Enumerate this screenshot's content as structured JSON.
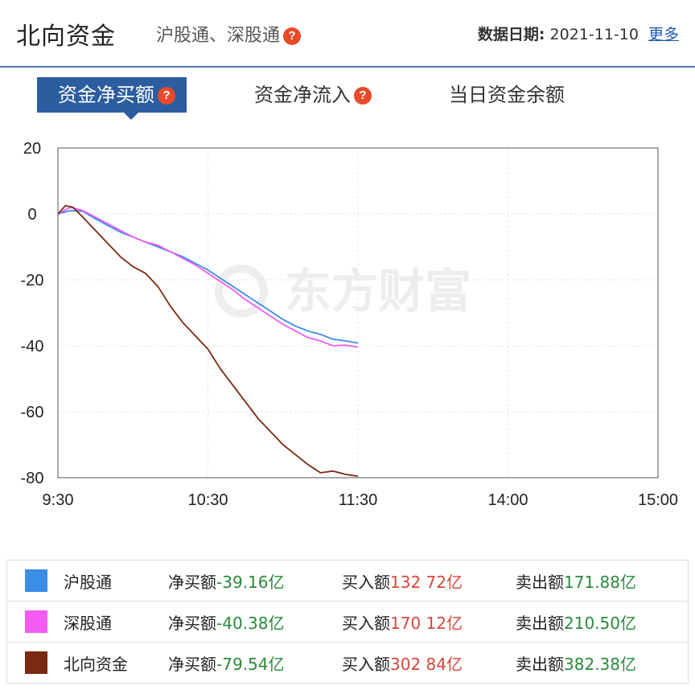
{
  "header": {
    "title": "北向资金",
    "subtitle": "沪股通、深股通",
    "date_label": "数据日期:",
    "date_value": "2021-11-10",
    "more_link": "更多",
    "help_icon": "question-icon"
  },
  "tabs": [
    {
      "label": "资金净买额",
      "active": true
    },
    {
      "label": "资金净流入",
      "active": false
    },
    {
      "label": "当日资金余额",
      "active": false
    }
  ],
  "watermark": "东方财富",
  "chart_data": {
    "type": "line",
    "x_ticks": [
      "9:30",
      "10:30",
      "11:30",
      "14:00",
      "15:00"
    ],
    "y_ticks": [
      "20",
      "0",
      "-20",
      "-40",
      "-60",
      "-80"
    ],
    "ylim": [
      -80,
      20
    ],
    "grid": true,
    "series": [
      {
        "name": "沪股通",
        "color": "#3a8ee6",
        "points": [
          [
            0,
            0
          ],
          [
            5,
            1
          ],
          [
            10,
            0.8
          ],
          [
            15,
            -1.5
          ],
          [
            20,
            -3.5
          ],
          [
            25,
            -5.5
          ],
          [
            30,
            -7
          ],
          [
            35,
            -8.5
          ],
          [
            40,
            -10
          ],
          [
            45,
            -11.5
          ],
          [
            50,
            -13
          ],
          [
            55,
            -15
          ],
          [
            60,
            -17
          ],
          [
            65,
            -19.5
          ],
          [
            70,
            -22
          ],
          [
            75,
            -24.5
          ],
          [
            80,
            -27
          ],
          [
            85,
            -29.5
          ],
          [
            90,
            -32
          ],
          [
            95,
            -34
          ],
          [
            100,
            -35.5
          ],
          [
            105,
            -36.5
          ],
          [
            110,
            -38
          ],
          [
            115,
            -38.5
          ],
          [
            120,
            -39.16
          ]
        ]
      },
      {
        "name": "深股通",
        "color": "#f25cf2",
        "points": [
          [
            0,
            0
          ],
          [
            5,
            2
          ],
          [
            10,
            1
          ],
          [
            15,
            -1
          ],
          [
            20,
            -3
          ],
          [
            25,
            -5
          ],
          [
            30,
            -7
          ],
          [
            35,
            -8.5
          ],
          [
            40,
            -9.5
          ],
          [
            45,
            -11.5
          ],
          [
            50,
            -13.5
          ],
          [
            55,
            -15.5
          ],
          [
            60,
            -18
          ],
          [
            65,
            -20.5
          ],
          [
            70,
            -23
          ],
          [
            75,
            -26
          ],
          [
            80,
            -28.5
          ],
          [
            85,
            -31
          ],
          [
            90,
            -33.5
          ],
          [
            95,
            -35.5
          ],
          [
            100,
            -37.5
          ],
          [
            105,
            -38.5
          ],
          [
            110,
            -40
          ],
          [
            115,
            -39.8
          ],
          [
            120,
            -40.38
          ]
        ]
      },
      {
        "name": "北向资金",
        "color": "#7a2a10",
        "points": [
          [
            0,
            0
          ],
          [
            3,
            2.5
          ],
          [
            6,
            2
          ],
          [
            10,
            -1
          ],
          [
            15,
            -5
          ],
          [
            20,
            -9
          ],
          [
            25,
            -13
          ],
          [
            30,
            -16
          ],
          [
            35,
            -18
          ],
          [
            40,
            -22
          ],
          [
            45,
            -28
          ],
          [
            50,
            -33
          ],
          [
            55,
            -37
          ],
          [
            60,
            -41
          ],
          [
            65,
            -47
          ],
          [
            70,
            -52
          ],
          [
            75,
            -57
          ],
          [
            80,
            -62
          ],
          [
            85,
            -66
          ],
          [
            90,
            -70
          ],
          [
            95,
            -73
          ],
          [
            100,
            -76
          ],
          [
            105,
            -78.5
          ],
          [
            110,
            -78
          ],
          [
            115,
            -79
          ],
          [
            120,
            -79.54
          ]
        ]
      }
    ]
  },
  "legend": [
    {
      "name": "沪股通",
      "color": "#3a8ee6",
      "net_label": "净买额",
      "net": "-39.16亿",
      "buy_label": "买入额",
      "buy": "132 72亿",
      "sell_label": "卖出额",
      "sell": "171.88亿"
    },
    {
      "name": "深股通",
      "color": "#f25cf2",
      "net_label": "净买额",
      "net": "-40.38亿",
      "buy_label": "买入额",
      "buy": "170 12亿",
      "sell_label": "卖出额",
      "sell": "210.50亿"
    },
    {
      "name": "北向资金",
      "color": "#7a2a10",
      "net_label": "净买额",
      "net": "-79.54亿",
      "buy_label": "买入额",
      "buy": "302 84亿",
      "sell_label": "卖出额",
      "sell": "382.38亿"
    }
  ]
}
